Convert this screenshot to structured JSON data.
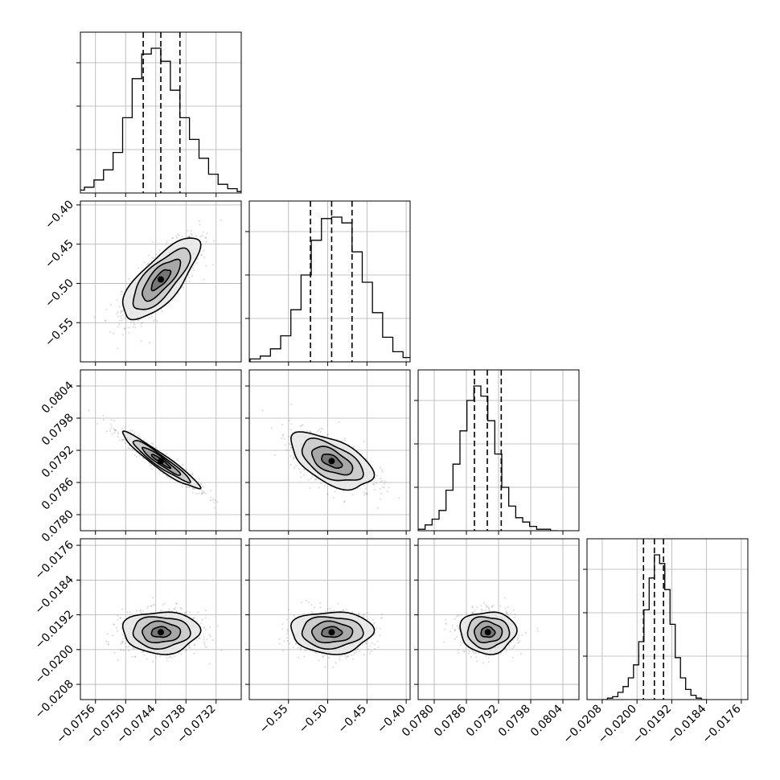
{
  "chart_data": {
    "type": "corner",
    "description_free": true,
    "parameters": [
      {
        "index": 0,
        "range": [
          -0.0759,
          -0.0727
        ],
        "ticks": [
          "−0.0756",
          "−0.0750",
          "−0.0744",
          "−0.0738",
          "−0.0732"
        ],
        "tick_values": [
          -0.0756,
          -0.075,
          -0.0744,
          -0.0738,
          -0.0732
        ],
        "quantiles": [
          -0.07465,
          -0.0743,
          -0.07392
        ],
        "mean": -0.0743,
        "sd": 0.00038
      },
      {
        "index": 1,
        "range": [
          -0.6,
          -0.395
        ],
        "ticks": [
          "−0.55",
          "−0.50",
          "−0.45",
          "−0.40"
        ],
        "tick_values": [
          -0.55,
          -0.5,
          -0.45,
          -0.4
        ],
        "quantiles": [
          -0.522,
          -0.495,
          -0.469
        ],
        "mean": -0.495,
        "sd": 0.026
      },
      {
        "index": 2,
        "range": [
          0.0777,
          0.0807
        ],
        "ticks": [
          "0.0780",
          "0.0786",
          "0.0792",
          "0.0798",
          "0.0804"
        ],
        "tick_values": [
          0.078,
          0.0786,
          0.0792,
          0.0798,
          0.0804
        ],
        "quantiles": [
          0.07875,
          0.07899,
          0.07925
        ],
        "mean": 0.079,
        "sd": 0.00026
      },
      {
        "index": 3,
        "range": [
          -0.02115,
          -0.01745
        ],
        "ticks": [
          "−0.0208",
          "−0.0200",
          "−0.0192",
          "−0.0184",
          "−0.0176"
        ],
        "tick_values": [
          -0.0208,
          -0.02,
          -0.0192,
          -0.0184,
          -0.0176
        ],
        "quantiles": [
          -0.01985,
          -0.0196,
          -0.01939
        ],
        "mean": -0.0196,
        "sd": 0.00024
      }
    ],
    "histograms": [
      {
        "param": 0,
        "counts": [
          1,
          2,
          4,
          9,
          16,
          28,
          52,
          79,
          96,
          100,
          91,
          71,
          52,
          37,
          24,
          13,
          6,
          3,
          1,
          0
        ]
      },
      {
        "param": 1,
        "counts": [
          0,
          0,
          2,
          4,
          9,
          18,
          36,
          60,
          84,
          99,
          100,
          96,
          76,
          55,
          34,
          17,
          7,
          3,
          1,
          0
        ]
      },
      {
        "param": 2,
        "counts": [
          1,
          4,
          8,
          14,
          28,
          46,
          69,
          90,
          100,
          93,
          76,
          53,
          30,
          17,
          9,
          6,
          3,
          1,
          1,
          0
        ]
      },
      {
        "param": 3,
        "counts": [
          0,
          1,
          2,
          5,
          9,
          15,
          24,
          40,
          62,
          84,
          100,
          94,
          76,
          52,
          29,
          15,
          7,
          3,
          1,
          0
        ]
      }
    ],
    "correlations": {
      "1-0": 0.75,
      "2-0": -0.95,
      "2-1": -0.55,
      "3-0": 0.0,
      "3-1": 0.0,
      "3-2": 0.0
    },
    "contour_levels_sigma": [
      0.5,
      1.0,
      1.5,
      2.0
    ],
    "grid": true
  }
}
